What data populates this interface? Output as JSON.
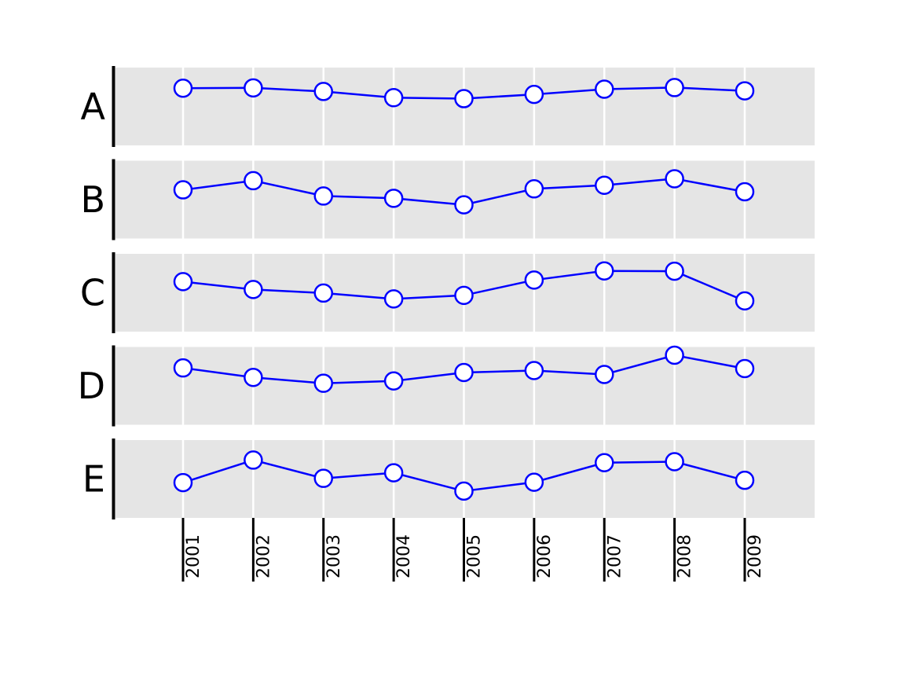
{
  "chart_data": {
    "type": "line",
    "x": [
      "2001",
      "2002",
      "2003",
      "2004",
      "2005",
      "2006",
      "2007",
      "2008",
      "2009"
    ],
    "panels": [
      {
        "label": "A",
        "values": [
          0.56,
          0.57,
          0.46,
          0.27,
          0.24,
          0.37,
          0.53,
          0.58,
          0.48
        ]
      },
      {
        "label": "B",
        "values": [
          0.3,
          0.58,
          0.11,
          0.04,
          -0.16,
          0.33,
          0.44,
          0.64,
          0.24
        ]
      },
      {
        "label": "C",
        "values": [
          0.34,
          0.1,
          -0.01,
          -0.19,
          -0.08,
          0.39,
          0.67,
          0.66,
          -0.25
        ]
      },
      {
        "label": "D",
        "values": [
          0.55,
          0.26,
          0.08,
          0.15,
          0.41,
          0.47,
          0.35,
          0.94,
          0.53
        ]
      },
      {
        "label": "E",
        "values": [
          -0.11,
          0.58,
          0.02,
          0.19,
          -0.37,
          -0.1,
          0.5,
          0.53,
          -0.04
        ]
      }
    ],
    "ylim": [
      -1,
      1
    ],
    "grid": true,
    "colors": {
      "line": "#0000ff",
      "marker_face": "#ffffff",
      "panel_bg": "#e5e5e5",
      "grid": "#ffffff",
      "axis": "#000000"
    }
  }
}
